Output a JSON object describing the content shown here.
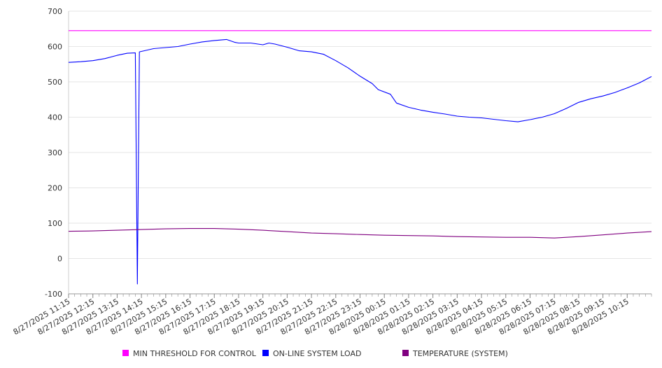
{
  "chart_data": {
    "type": "line",
    "title": "",
    "xlabel": "",
    "ylabel": "",
    "ylim": [
      -100,
      700
    ],
    "y_ticks": [
      700,
      600,
      500,
      400,
      300,
      200,
      100,
      0,
      -100
    ],
    "x_tick_labels": [
      "8/27/2025 11:15",
      "8/27/2025 12:15",
      "8/27/2025 13:15",
      "8/27/2025 14:15",
      "8/27/2025 15:15",
      "8/27/2025 16:15",
      "8/27/2025 17:15",
      "8/27/2025 18:15",
      "8/27/2025 19:15",
      "8/27/2025 20:15",
      "8/27/2025 21:15",
      "8/27/2025 22:15",
      "8/27/2025 23:15",
      "8/28/2025 00:15",
      "8/28/2025 01:15",
      "8/28/2025 02:15",
      "8/28/2025 03:15",
      "8/28/2025 04:15",
      "8/28/2025 05:15",
      "8/28/2025 06:15",
      "8/28/2025 07:15",
      "8/28/2025 08:15",
      "8/28/2025 09:15",
      "8/28/2025 10:15"
    ],
    "x_range": [
      "8/27/2025 11:15",
      "8/28/2025 11:15"
    ],
    "grid": "horizontal",
    "legend_position": "bottom",
    "series": [
      {
        "name": "MIN THRESHOLD FOR CONTROL",
        "color": "#ff00ff",
        "points": [
          [
            "8/27/2025 11:15",
            645
          ],
          [
            "8/28/2025 11:15",
            645
          ]
        ]
      },
      {
        "name": "ON-LINE SYSTEM LOAD",
        "color": "#0000ff",
        "points": [
          [
            "8/27/2025 11:15",
            555
          ],
          [
            "8/27/2025 11:45",
            557
          ],
          [
            "8/27/2025 12:15",
            560
          ],
          [
            "8/27/2025 12:45",
            566
          ],
          [
            "8/27/2025 13:15",
            575
          ],
          [
            "8/27/2025 13:40",
            581
          ],
          [
            "8/27/2025 14:00",
            582
          ],
          [
            "8/27/2025 14:05",
            -72
          ],
          [
            "8/27/2025 14:10",
            585
          ],
          [
            "8/27/2025 14:30",
            590
          ],
          [
            "8/27/2025 14:45",
            594
          ],
          [
            "8/27/2025 15:15",
            597
          ],
          [
            "8/27/2025 15:45",
            600
          ],
          [
            "8/27/2025 16:15",
            607
          ],
          [
            "8/27/2025 16:45",
            613
          ],
          [
            "8/27/2025 17:15",
            617
          ],
          [
            "8/27/2025 17:45",
            620
          ],
          [
            "8/27/2025 18:05",
            612
          ],
          [
            "8/27/2025 18:15",
            610
          ],
          [
            "8/27/2025 18:45",
            610
          ],
          [
            "8/27/2025 19:15",
            605
          ],
          [
            "8/27/2025 19:30",
            610
          ],
          [
            "8/27/2025 19:45",
            607
          ],
          [
            "8/27/2025 20:15",
            598
          ],
          [
            "8/27/2025 20:45",
            588
          ],
          [
            "8/27/2025 21:15",
            585
          ],
          [
            "8/27/2025 21:45",
            578
          ],
          [
            "8/27/2025 22:15",
            560
          ],
          [
            "8/27/2025 22:45",
            540
          ],
          [
            "8/27/2025 23:15",
            516
          ],
          [
            "8/27/2025 23:45",
            495
          ],
          [
            "8/28/2025 00:00",
            478
          ],
          [
            "8/28/2025 00:30",
            465
          ],
          [
            "8/28/2025 00:45",
            440
          ],
          [
            "8/28/2025 01:15",
            428
          ],
          [
            "8/28/2025 01:45",
            420
          ],
          [
            "8/28/2025 02:15",
            414
          ],
          [
            "8/28/2025 02:45",
            409
          ],
          [
            "8/28/2025 03:15",
            403
          ],
          [
            "8/28/2025 03:45",
            400
          ],
          [
            "8/28/2025 04:15",
            398
          ],
          [
            "8/28/2025 04:45",
            394
          ],
          [
            "8/28/2025 05:15",
            390
          ],
          [
            "8/28/2025 05:45",
            387
          ],
          [
            "8/28/2025 06:15",
            393
          ],
          [
            "8/28/2025 06:45",
            400
          ],
          [
            "8/28/2025 07:15",
            410
          ],
          [
            "8/28/2025 07:45",
            425
          ],
          [
            "8/28/2025 08:15",
            442
          ],
          [
            "8/28/2025 08:45",
            452
          ],
          [
            "8/28/2025 09:15",
            460
          ],
          [
            "8/28/2025 09:45",
            470
          ],
          [
            "8/28/2025 10:15",
            483
          ],
          [
            "8/28/2025 10:45",
            497
          ],
          [
            "8/28/2025 11:15",
            515
          ]
        ]
      },
      {
        "name": "TEMPERATURE (SYSTEM)",
        "color": "#800080",
        "points": [
          [
            "8/27/2025 11:15",
            77
          ],
          [
            "8/27/2025 12:15",
            78
          ],
          [
            "8/27/2025 13:15",
            80
          ],
          [
            "8/27/2025 14:15",
            82
          ],
          [
            "8/27/2025 15:15",
            84
          ],
          [
            "8/27/2025 16:15",
            85
          ],
          [
            "8/27/2025 17:15",
            85
          ],
          [
            "8/27/2025 18:15",
            83
          ],
          [
            "8/27/2025 19:15",
            80
          ],
          [
            "8/27/2025 20:15",
            76
          ],
          [
            "8/27/2025 21:15",
            72
          ],
          [
            "8/27/2025 22:15",
            70
          ],
          [
            "8/27/2025 23:15",
            68
          ],
          [
            "8/28/2025 00:15",
            66
          ],
          [
            "8/28/2025 01:15",
            65
          ],
          [
            "8/28/2025 02:15",
            64
          ],
          [
            "8/28/2025 03:15",
            62
          ],
          [
            "8/28/2025 04:15",
            61
          ],
          [
            "8/28/2025 05:15",
            60
          ],
          [
            "8/28/2025 06:15",
            60
          ],
          [
            "8/28/2025 07:15",
            58
          ],
          [
            "8/28/2025 08:15",
            62
          ],
          [
            "8/28/2025 09:15",
            67
          ],
          [
            "8/28/2025 10:15",
            72
          ],
          [
            "8/28/2025 11:15",
            76
          ]
        ]
      }
    ]
  }
}
